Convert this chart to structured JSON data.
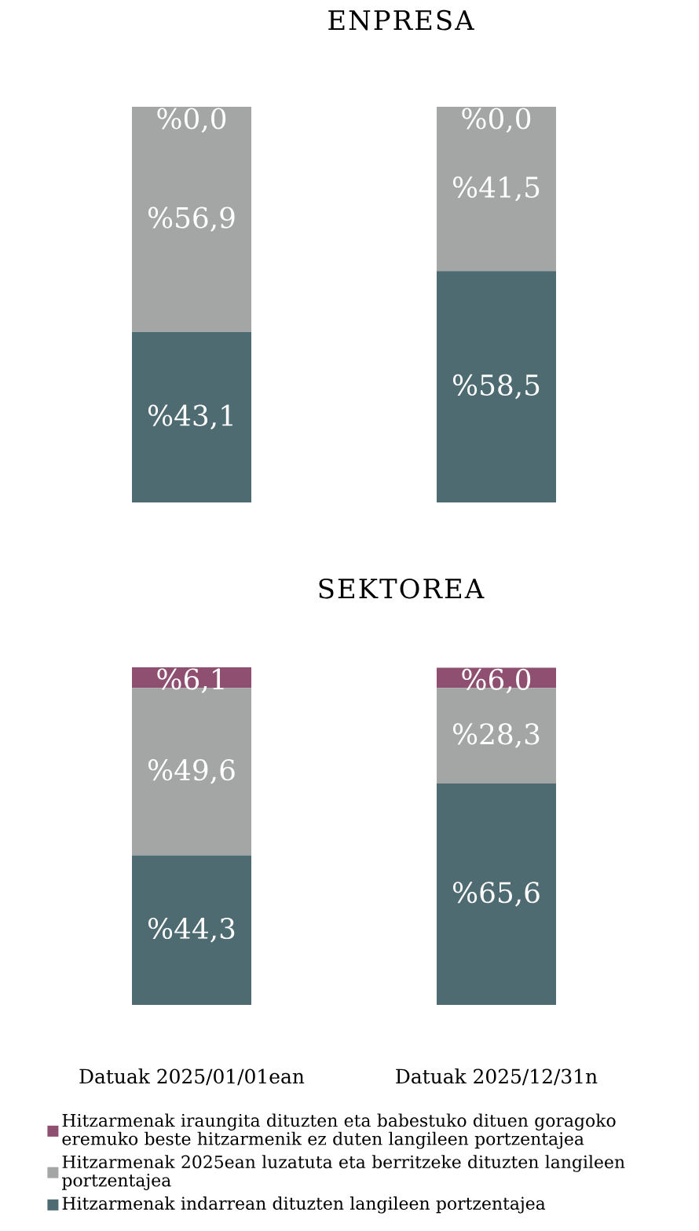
{
  "chart_data": [
    {
      "type": "bar",
      "title": "ENPRESA",
      "categories": [
        null,
        null
      ],
      "stacked": true,
      "series": [
        {
          "color": "#4f6b72",
          "values": [
            43.1,
            58.5
          ],
          "value_labels": [
            "%43,1",
            "%58,5"
          ]
        },
        {
          "color": "#a4a5a5",
          "values": [
            56.9,
            41.5
          ],
          "value_labels": [
            "%56,9",
            "%41,5"
          ]
        },
        {
          "color": "#8e4f70",
          "values": [
            0.0,
            0.0
          ],
          "value_labels": [
            "%0,0",
            "%0,0"
          ]
        }
      ]
    },
    {
      "type": "bar",
      "title": "SEKTOREA",
      "categories": [
        "Datuak 2025/01/01ean",
        "Datuak 2025/12/31n"
      ],
      "stacked": true,
      "tick_labels": "x",
      "legend": "bottom",
      "series": [
        {
          "name": "Hitzarmenak indarrean dituzten langileen portzentajea",
          "color": "#4f6b72",
          "values": [
            44.3,
            65.6
          ],
          "value_labels": [
            "%44,3",
            "%65,6"
          ]
        },
        {
          "name": "Hitzarmenak 2025ean luzatuta eta berritzeke dituzten langileen portzentajea",
          "color": "#a4a5a5",
          "values": [
            49.6,
            28.3
          ],
          "value_labels": [
            "%49,6",
            "%28,3"
          ]
        },
        {
          "name": "Hitzarmenak iraungita dituzten eta babestuko dituen goragoko eremuko beste hitzarmenik ez duten langileen portzentajea",
          "color": "#8e4f70",
          "values": [
            6.1,
            6.0
          ],
          "value_labels": [
            "%6,1",
            "%6,0"
          ]
        }
      ]
    }
  ]
}
